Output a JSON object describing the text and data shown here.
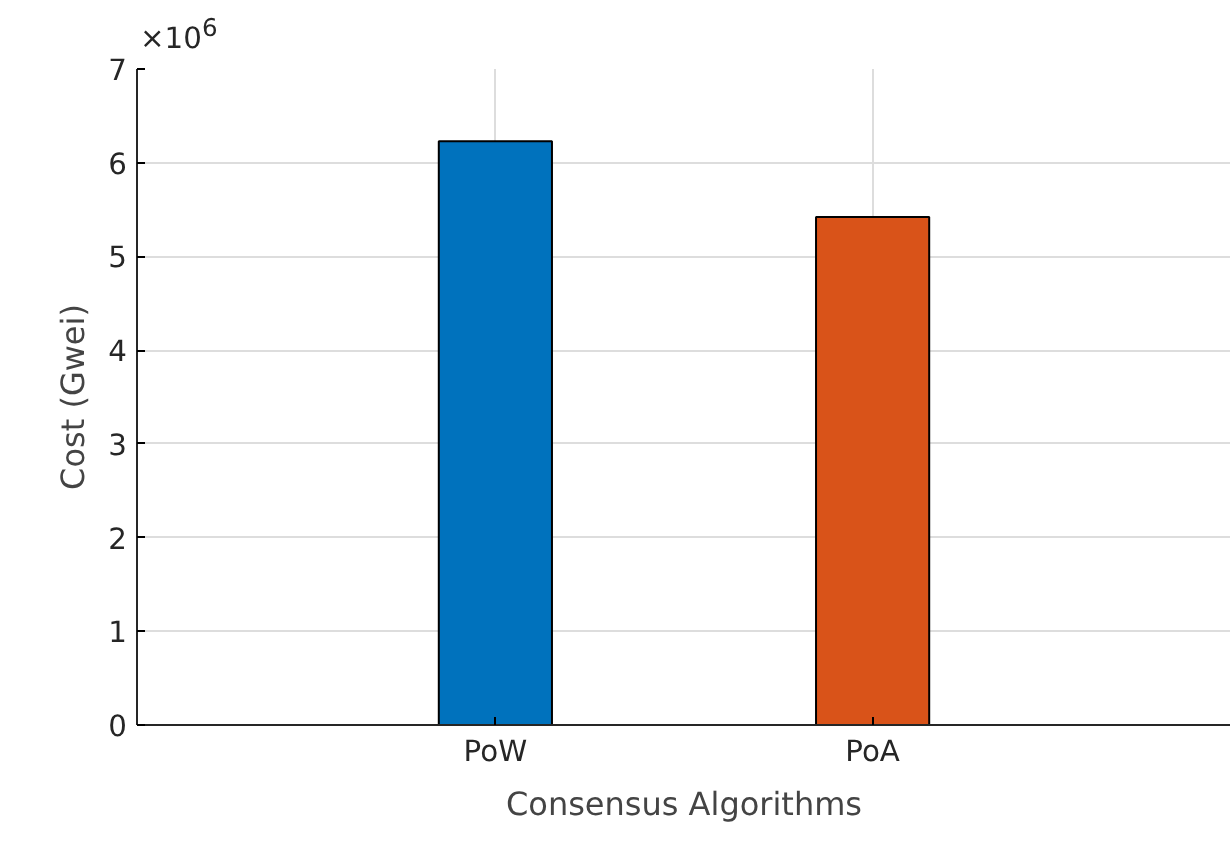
{
  "chart_data": {
    "type": "bar",
    "xlabel": "Consensus Algorithms",
    "ylabel": "Cost (Gwei)",
    "categories": [
      "PoW",
      "PoA"
    ],
    "values": [
      6.23,
      5.42
    ],
    "colors": [
      "#0072bd",
      "#d95319"
    ],
    "ylim": [
      0,
      7
    ],
    "yticks": [
      0,
      1,
      2,
      3,
      4,
      5,
      6,
      7
    ],
    "annotations": [
      "×10$^{6}$"
    ],
    "grid": true
  }
}
